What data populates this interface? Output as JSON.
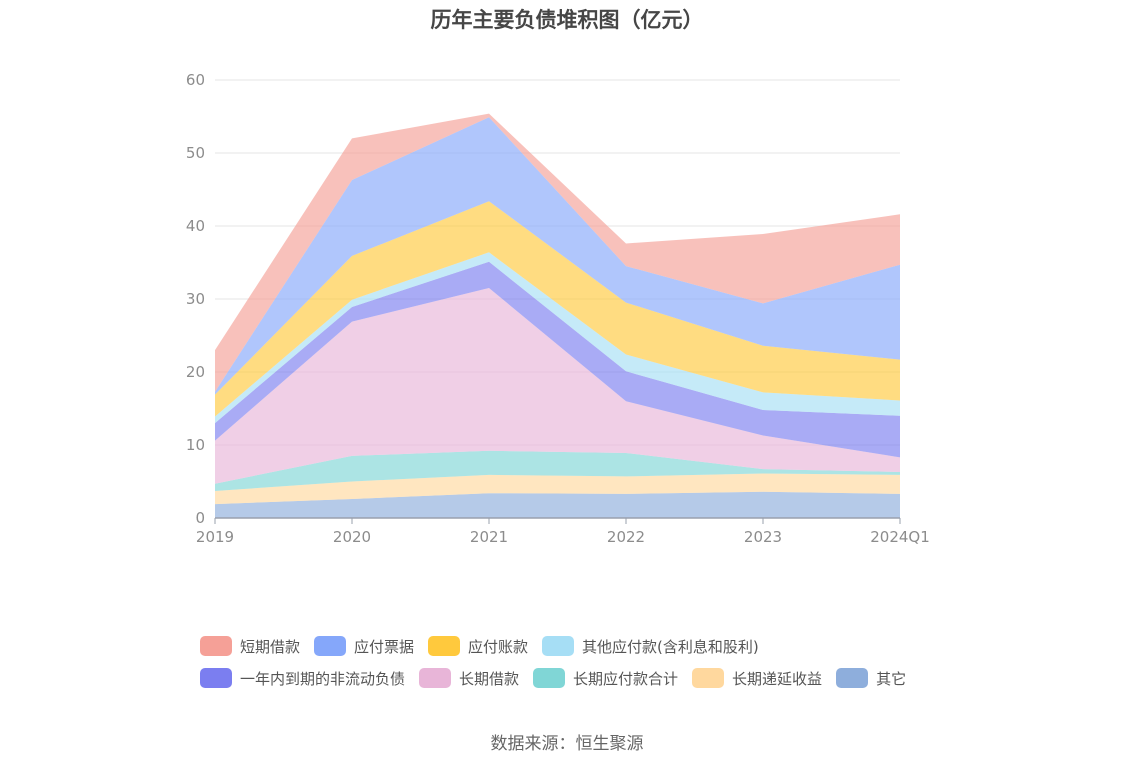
{
  "chart_data": {
    "type": "area",
    "stacked": true,
    "title": "历年主要负债堆积图（亿元）",
    "categories": [
      "2019",
      "2020",
      "2021",
      "2022",
      "2023",
      "2024Q1"
    ],
    "ylim": [
      0,
      60
    ],
    "yticks": [
      "0",
      "10",
      "20",
      "30",
      "40",
      "50",
      "60"
    ],
    "grid": true,
    "legend_position": "bottom",
    "series": [
      {
        "name": "其它",
        "color": "#8eaedc",
        "values": [
          1.9,
          2.6,
          3.4,
          3.3,
          3.6,
          3.3
        ]
      },
      {
        "name": "长期递延收益",
        "color": "#ffd89e",
        "values": [
          1.8,
          2.4,
          2.5,
          2.4,
          2.5,
          2.6
        ]
      },
      {
        "name": "长期应付款合计",
        "color": "#80d6d6",
        "values": [
          1.0,
          3.5,
          3.3,
          3.2,
          0.6,
          0.4
        ]
      },
      {
        "name": "长期借款",
        "color": "#e8b5d8",
        "values": [
          5.9,
          18.4,
          22.3,
          7.1,
          4.6,
          2.0
        ]
      },
      {
        "name": "一年内到期的非流动负债",
        "color": "#7b7ef0",
        "values": [
          2.4,
          2.0,
          3.6,
          4.1,
          3.5,
          5.7
        ]
      },
      {
        "name": "其他应付款(含利息和股利)",
        "color": "#a6def5",
        "values": [
          0.9,
          1.0,
          1.3,
          2.3,
          2.4,
          2.1
        ]
      },
      {
        "name": "应付账款",
        "color": "#ffc93d",
        "values": [
          3.0,
          6.0,
          7.0,
          7.1,
          6.4,
          5.6
        ]
      },
      {
        "name": "应付票据",
        "color": "#85a7fa",
        "values": [
          0.4,
          10.4,
          11.5,
          5.0,
          5.8,
          13.0
        ]
      },
      {
        "name": "短期借款",
        "color": "#f5a097",
        "values": [
          5.7,
          5.7,
          0.5,
          3.1,
          9.5,
          6.9
        ]
      }
    ]
  },
  "legend_rows": [
    [
      {
        "name": "短期借款",
        "color": "#f5a097"
      },
      {
        "name": "应付票据",
        "color": "#85a7fa"
      },
      {
        "name": "应付账款",
        "color": "#ffc93d"
      },
      {
        "name": "其他应付款(含利息和股利)",
        "color": "#a6def5"
      }
    ],
    [
      {
        "name": "一年内到期的非流动负债",
        "color": "#7b7ef0"
      },
      {
        "name": "长期借款",
        "color": "#e8b5d8"
      },
      {
        "name": "长期应付款合计",
        "color": "#80d6d6"
      },
      {
        "name": "长期递延收益",
        "color": "#ffd89e"
      },
      {
        "name": "其它",
        "color": "#8eaedc"
      }
    ]
  ],
  "source_note": "数据来源：恒生聚源"
}
